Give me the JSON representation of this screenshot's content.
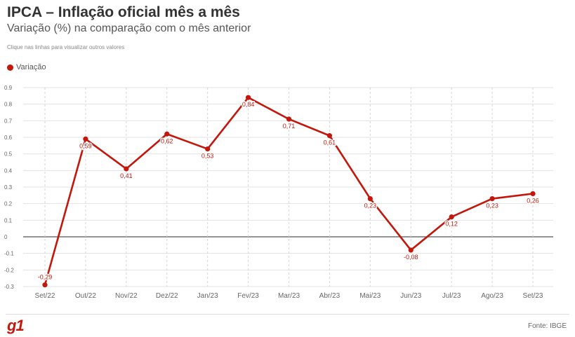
{
  "header": {
    "title": "IPCA – Inflação oficial mês a mês",
    "subtitle": "Variação (%) na comparação com o mês anterior",
    "hint": "Clique nas linhas para visualizar outros valores"
  },
  "legend": {
    "label": "Variação"
  },
  "colors": {
    "series": "#c4170c",
    "grid": "#e3e3e3",
    "vgrid": "#d6d6d6",
    "zero": "#555555"
  },
  "footer": {
    "logo": "g1",
    "source": "Fonte: IBGE"
  },
  "chart_data": {
    "type": "line",
    "x": [
      "Set/22",
      "Out/22",
      "Nov/22",
      "Dez/22",
      "Jan/23",
      "Fev/23",
      "Mar/23",
      "Abr/23",
      "Mai/23",
      "Jun/23",
      "Jul/23",
      "Ago/23",
      "Set/23"
    ],
    "series": [
      {
        "name": "Variação",
        "values": [
          -0.29,
          0.59,
          0.41,
          0.62,
          0.53,
          0.84,
          0.71,
          0.61,
          0.23,
          -0.08,
          0.12,
          0.23,
          0.26
        ],
        "labels": [
          "-0,29",
          "0,59",
          "0,41",
          "0,62",
          "0,53",
          "0,84",
          "0,71",
          "0,61",
          "0,23",
          "-0,08",
          "0,12",
          "0,23",
          "0,26"
        ]
      }
    ],
    "yticks": [
      -0.3,
      -0.2,
      -0.1,
      0,
      0.1,
      0.2,
      0.3,
      0.4,
      0.5,
      0.6,
      0.7,
      0.8,
      0.9
    ],
    "ytick_labels": [
      "-0.3",
      "-0.2",
      "-0.1",
      "0",
      "0.1",
      "0.2",
      "0.3",
      "0.4",
      "0.5",
      "0.6",
      "0.7",
      "0.8",
      "0.9"
    ],
    "ylim": [
      -0.3,
      0.9
    ],
    "grid": true,
    "legend_position": "top-left"
  }
}
